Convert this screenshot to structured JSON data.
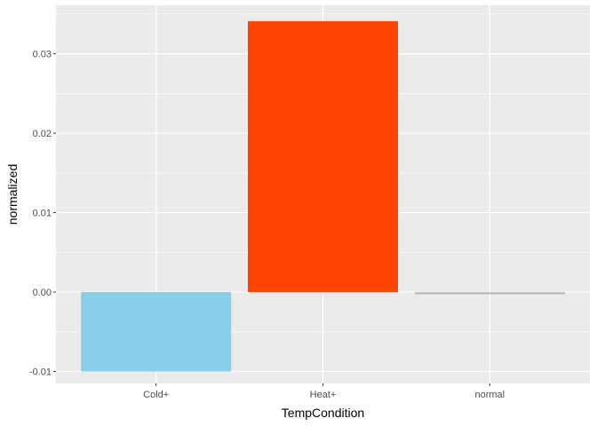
{
  "chart_data": {
    "type": "bar",
    "title": "",
    "xlabel": "TempCondition",
    "ylabel": "normalized",
    "categories": [
      "Cold+",
      "Heat+",
      "normal"
    ],
    "values": [
      -0.01,
      0.0341,
      -0.0003
    ],
    "colors": [
      "#87CEEB",
      "#FF4500",
      "#BEBEBE"
    ],
    "ylim": [
      -0.0115,
      0.0361
    ],
    "yticks": [
      -0.01,
      0.0,
      0.01,
      0.02,
      0.03
    ],
    "ytick_labels": [
      "-0.01",
      "0.00",
      "0.01",
      "0.02",
      "0.03"
    ],
    "grid": true,
    "legend": "none",
    "panel_background": "#EBEBEB",
    "gridline_color": "#FFFFFF"
  }
}
